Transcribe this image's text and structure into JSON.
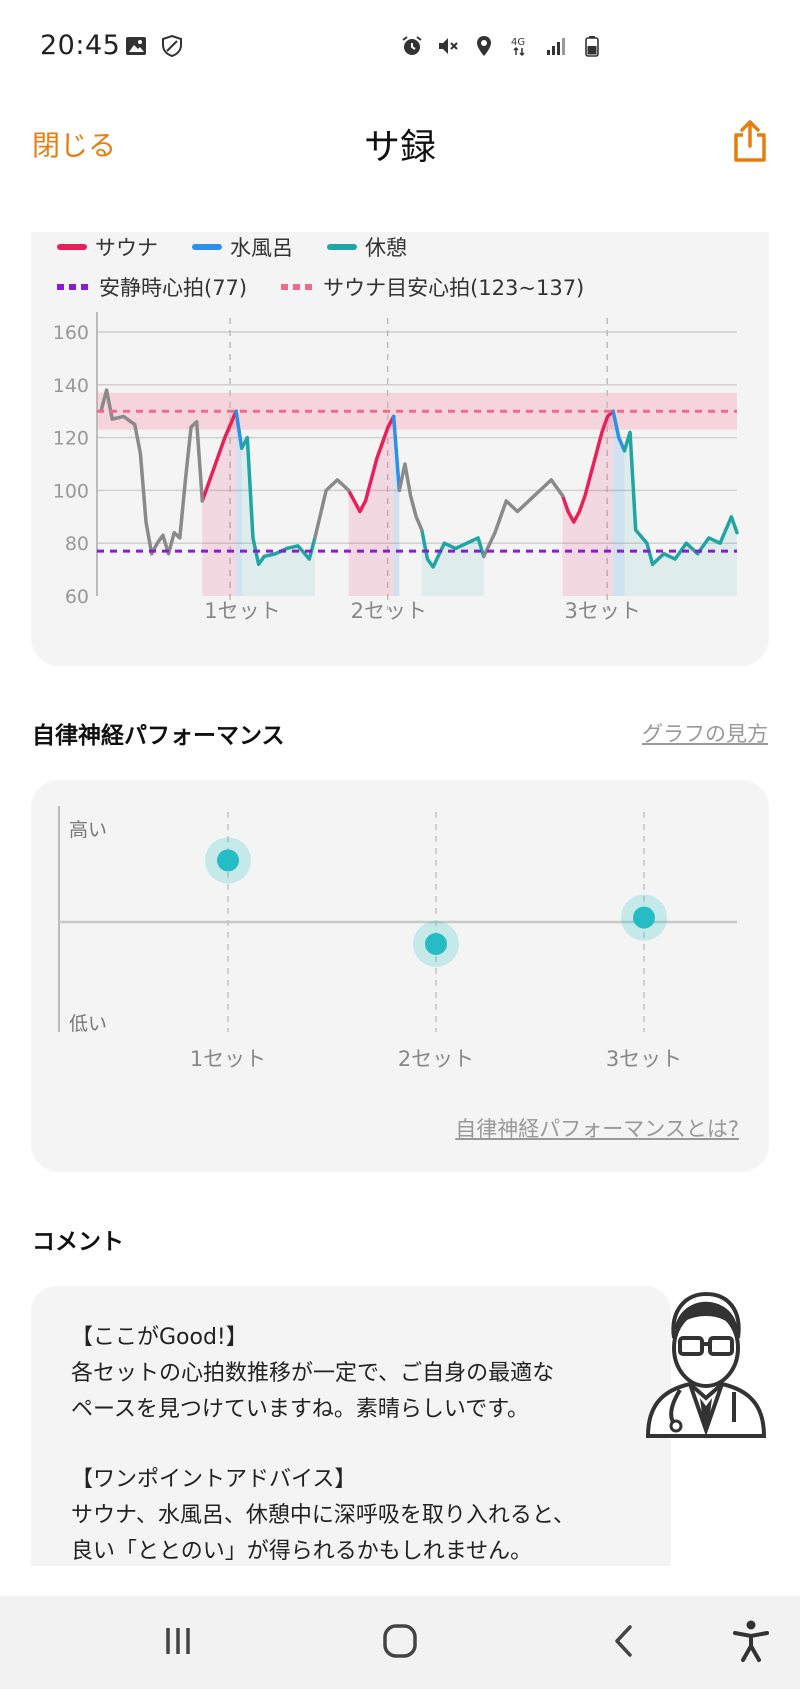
{
  "status_bar": {
    "time": "20:45",
    "left_icons": [
      "image-icon",
      "shield-icon"
    ],
    "right_icons": [
      "alarm-icon",
      "mute-icon",
      "location-icon",
      "network-4g-icon",
      "signal-icon",
      "battery-icon"
    ],
    "network_label": "4G"
  },
  "header": {
    "close_label": "閉じる",
    "title": "サ録",
    "share_icon": "share-icon",
    "accent_color": "#e67e0f"
  },
  "hr_legend": {
    "sauna": "サウナ",
    "cold_bath": "水風呂",
    "rest": "休憩",
    "resting_hr": "安静時心拍(77)",
    "target_hr": "サウナ目安心拍(123~137)"
  },
  "colors": {
    "sauna": "#e8205a",
    "cold_bath": "#2c8fe8",
    "rest": "#21a4a4",
    "baseline": "#8a8a8a",
    "resting": "#8a19d8",
    "target": "#f06a8e"
  },
  "chart_data": [
    {
      "type": "line",
      "ylim": [
        60,
        160
      ],
      "yticks": [
        60,
        80,
        100,
        120,
        140,
        160
      ],
      "reference_lines": [
        {
          "label": "安静時心拍(77)",
          "value": 77
        },
        {
          "label": "サウナ目安心拍(123~137)",
          "value": 130,
          "band": [
            123,
            137
          ]
        }
      ],
      "set_labels": [
        "1セット",
        "2セット",
        "3セット"
      ],
      "series": [
        {
          "name": "サウナ",
          "segments": [
            [
              [
                18,
                96
              ],
              [
                19,
                102
              ],
              [
                20,
                108
              ],
              [
                21,
                114
              ],
              [
                22,
                120
              ],
              [
                23,
                125
              ],
              [
                24,
                130
              ]
            ],
            [
              [
                44,
                100
              ],
              [
                45,
                96
              ],
              [
                46,
                92
              ],
              [
                47,
                96
              ],
              [
                48,
                104
              ],
              [
                49,
                112
              ],
              [
                50,
                118
              ],
              [
                51,
                124
              ],
              [
                52,
                128
              ]
            ],
            [
              [
                82,
                98
              ],
              [
                83,
                92
              ],
              [
                84,
                88
              ],
              [
                85,
                92
              ],
              [
                86,
                98
              ],
              [
                87,
                106
              ],
              [
                88,
                114
              ],
              [
                89,
                122
              ],
              [
                90,
                128
              ],
              [
                91,
                130
              ]
            ]
          ]
        },
        {
          "name": "水風呂",
          "segments": [
            [
              [
                24,
                130
              ],
              [
                25,
                116
              ]
            ],
            [
              [
                52,
                128
              ],
              [
                53,
                100
              ]
            ],
            [
              [
                91,
                130
              ],
              [
                92,
                120
              ],
              [
                93,
                115
              ]
            ]
          ]
        },
        {
          "name": "休憩",
          "segments": [
            [
              [
                25,
                116
              ],
              [
                26,
                120
              ],
              [
                27,
                82
              ],
              [
                28,
                72
              ],
              [
                29,
                75
              ],
              [
                31,
                76
              ],
              [
                33,
                78
              ],
              [
                35,
                79
              ],
              [
                37,
                74
              ],
              [
                38,
                82
              ]
            ],
            [
              [
                57,
                85
              ],
              [
                58,
                74
              ],
              [
                59,
                71
              ],
              [
                61,
                80
              ],
              [
                63,
                78
              ],
              [
                65,
                80
              ],
              [
                67,
                82
              ],
              [
                68,
                75
              ]
            ],
            [
              [
                93,
                115
              ],
              [
                94,
                122
              ],
              [
                95,
                85
              ],
              [
                97,
                80
              ],
              [
                98,
                72
              ],
              [
                100,
                76
              ],
              [
                102,
                74
              ],
              [
                104,
                80
              ],
              [
                106,
                76
              ],
              [
                108,
                82
              ],
              [
                110,
                80
              ],
              [
                112,
                90
              ],
              [
                113,
                84
              ]
            ]
          ]
        },
        {
          "name": "",
          "segments": [
            [
              [
                0,
                130
              ],
              [
                1,
                138
              ],
              [
                2,
                127
              ],
              [
                4,
                128
              ],
              [
                6,
                125
              ],
              [
                7,
                114
              ],
              [
                8,
                88
              ],
              [
                9,
                76
              ],
              [
                10,
                80
              ],
              [
                11,
                83
              ],
              [
                12,
                76
              ],
              [
                13,
                84
              ],
              [
                14,
                82
              ],
              [
                15,
                104
              ],
              [
                16,
                124
              ],
              [
                17,
                126
              ],
              [
                18,
                96
              ]
            ],
            [
              [
                38,
                82
              ],
              [
                40,
                100
              ],
              [
                42,
                104
              ],
              [
                44,
                100
              ]
            ],
            [
              [
                53,
                100
              ],
              [
                54,
                110
              ],
              [
                55,
                98
              ],
              [
                56,
                90
              ],
              [
                57,
                85
              ]
            ],
            [
              [
                68,
                75
              ],
              [
                70,
                84
              ],
              [
                72,
                96
              ],
              [
                74,
                92
              ],
              [
                76,
                96
              ],
              [
                78,
                100
              ],
              [
                80,
                104
              ],
              [
                82,
                98
              ]
            ]
          ]
        }
      ]
    },
    {
      "type": "scatter",
      "categories": [
        "1セット",
        "2セット",
        "3セット"
      ],
      "values": [
        0.78,
        0.4,
        0.52
      ],
      "ylabels": {
        "high": "高い",
        "low": "低い"
      }
    }
  ],
  "ans_section": {
    "title": "自律神経パフォーマンス",
    "help_link": "グラフの見方",
    "what_is_link": "自律神経パフォーマンスとは?"
  },
  "comment_section": {
    "title": "コメント",
    "lines": [
      "【ここがGood!】",
      "各セットの心拍数推移が一定で、ご自身の最適な",
      "ペースを見つけていますね。素晴らしいです。",
      "",
      "【ワンポイントアドバイス】",
      "サウナ、水風呂、休憩中に深呼吸を取り入れると、",
      "良い「ととのい」が得られるかもしれません。"
    ],
    "avatar_icon": "doctor-icon"
  },
  "nav_bar": {
    "icons": [
      "recent-apps-icon",
      "home-icon",
      "back-icon",
      "accessibility-icon"
    ]
  }
}
